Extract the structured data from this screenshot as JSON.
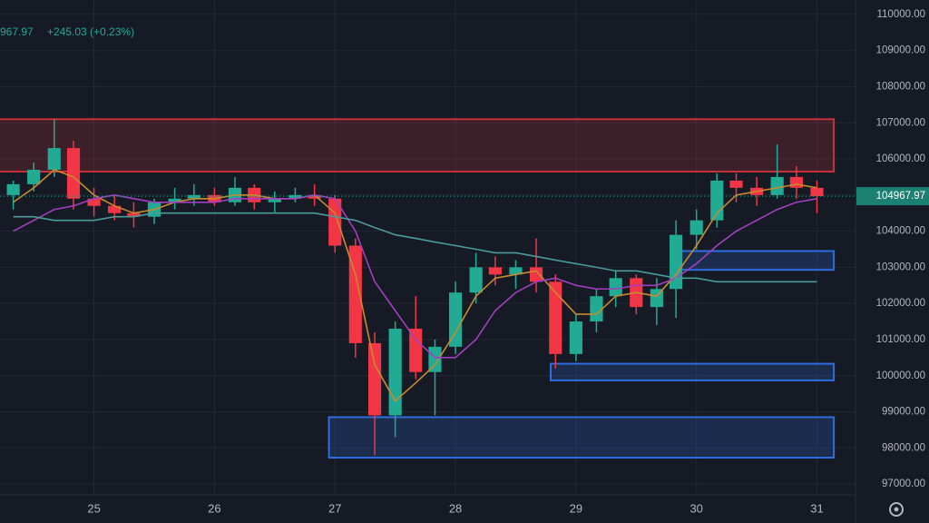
{
  "chart_data": {
    "type": "candlestick",
    "header": [
      "967.97",
      "+245.03 (+0.23%)"
    ],
    "x": [
      24.33,
      24.5,
      24.67,
      24.83,
      25,
      25.17,
      25.33,
      25.5,
      25.67,
      25.83,
      26,
      26.17,
      26.33,
      26.5,
      26.67,
      26.83,
      27,
      27.17,
      27.33,
      27.5,
      27.67,
      27.83,
      28,
      28.17,
      28.33,
      28.5,
      28.67,
      28.83,
      29,
      29.17,
      29.33,
      29.5,
      29.67,
      29.83,
      30,
      30.17,
      30.33,
      30.5,
      30.67,
      30.83,
      31
    ],
    "open": [
      105000,
      105300,
      105700,
      106300,
      104900,
      104700,
      104500,
      104400,
      104800,
      104900,
      105000,
      104800,
      105200,
      104800,
      104900,
      105000,
      104900,
      103600,
      100900,
      98900,
      101300,
      100100,
      100800,
      102300,
      103000,
      102800,
      103000,
      102600,
      100600,
      101500,
      102200,
      102700,
      101900,
      102400,
      103900,
      104300,
      105400,
      105200,
      105000,
      105500,
      105200
    ],
    "high": [
      105400,
      105900,
      107100,
      106500,
      105200,
      105000,
      104800,
      104900,
      105200,
      105300,
      105200,
      105500,
      105300,
      105100,
      105200,
      105300,
      105000,
      103800,
      101200,
      101500,
      102200,
      101000,
      102600,
      103400,
      103300,
      103200,
      103800,
      102800,
      101700,
      102400,
      102900,
      102800,
      102700,
      104300,
      104600,
      105600,
      105600,
      105500,
      106400,
      105800,
      105400
    ],
    "low": [
      104600,
      105100,
      105500,
      104600,
      104400,
      104300,
      104100,
      104200,
      104600,
      104700,
      104700,
      104700,
      104600,
      104500,
      104800,
      104700,
      103400,
      100500,
      97800,
      98300,
      99900,
      98900,
      100600,
      102000,
      102500,
      102400,
      102300,
      100200,
      100400,
      101200,
      101900,
      101700,
      101400,
      101600,
      103500,
      104100,
      104800,
      104700,
      104900,
      104900,
      104500
    ],
    "close": [
      105300,
      105700,
      106300,
      104900,
      104700,
      104500,
      104400,
      104800,
      104900,
      105000,
      104800,
      105200,
      104800,
      104900,
      105000,
      104900,
      103600,
      100900,
      98900,
      101300,
      100100,
      100800,
      102300,
      103000,
      102800,
      103000,
      102600,
      100600,
      101500,
      102200,
      102700,
      101900,
      102400,
      103900,
      104300,
      105400,
      105200,
      105000,
      105500,
      105200,
      104968
    ],
    "up_color": "#22ab94",
    "down_color": "#f23645",
    "series": [
      {
        "color": "#c98a2e",
        "values": [
          104800,
          105200,
          105700,
          105500,
          105000,
          104700,
          104500,
          104600,
          104800,
          104900,
          104900,
          105000,
          105000,
          104900,
          104900,
          105000,
          104500,
          102800,
          100300,
          99300,
          99800,
          100300,
          101200,
          102200,
          102700,
          102800,
          102900,
          102300,
          101700,
          101700,
          102200,
          102300,
          102200,
          102800,
          103600,
          104500,
          105000,
          105100,
          105200,
          105300,
          105200
        ]
      },
      {
        "color": "#a23fc0",
        "values": [
          104000,
          104300,
          104600,
          104700,
          104900,
          105000,
          104900,
          104800,
          104800,
          104800,
          104800,
          104900,
          104900,
          104900,
          104900,
          105000,
          104900,
          104000,
          102600,
          101800,
          101000,
          100500,
          100500,
          101000,
          101800,
          102300,
          102600,
          102700,
          102500,
          102400,
          102400,
          102500,
          102500,
          102700,
          103100,
          103600,
          104000,
          104300,
          104600,
          104800,
          104900
        ]
      },
      {
        "color": "#4a9a98",
        "values": [
          104400,
          104400,
          104300,
          104300,
          104300,
          104400,
          104400,
          104500,
          104500,
          104500,
          104500,
          104500,
          104500,
          104500,
          104500,
          104500,
          104400,
          104300,
          104100,
          103900,
          103800,
          103700,
          103600,
          103500,
          103400,
          103400,
          103300,
          103200,
          103100,
          103000,
          102900,
          102900,
          102800,
          102700,
          102700,
          102600,
          102600,
          102600,
          102600,
          102600,
          102600
        ]
      }
    ],
    "zones": [
      {
        "color": "#c8323c",
        "x": [
          24.1,
          31.14
        ],
        "y": [
          105650,
          107100
        ]
      },
      {
        "color": "#2f6de0",
        "x": [
          29.82,
          31.14
        ],
        "y": [
          102930,
          103450
        ]
      },
      {
        "color": "#2f6de0",
        "x": [
          28.79,
          31.14
        ],
        "y": [
          99870,
          100330
        ]
      },
      {
        "color": "#2f6de0",
        "x": [
          26.95,
          31.14
        ],
        "y": [
          97730,
          98850
        ]
      }
    ],
    "last_price": 104967.97,
    "xlim": [
      24.22,
      31.32
    ],
    "xticks": [
      25,
      26,
      27,
      28,
      29,
      30,
      31
    ],
    "ylim": [
      96700,
      110400
    ],
    "yticks": [
      {
        "value": 97000,
        "label": "97000.00"
      },
      {
        "value": 98000,
        "label": "98000.00"
      },
      {
        "value": 99000,
        "label": "99000.00"
      },
      {
        "value": 100000,
        "label": "100000.00"
      },
      {
        "value": 101000,
        "label": "101000.00"
      },
      {
        "value": 102000,
        "label": "102000.00"
      },
      {
        "value": 103000,
        "label": "103000.00"
      },
      {
        "value": 104000,
        "label": "104000.00"
      },
      {
        "value": 105000,
        "label": "105000.00"
      },
      {
        "value": 106000,
        "label": "106000.00"
      },
      {
        "value": 107000,
        "label": "107000.00"
      },
      {
        "value": 108000,
        "label": "108000.00"
      },
      {
        "value": 109000,
        "label": "109000.00"
      },
      {
        "value": 110000,
        "label": "110000.00"
      }
    ],
    "grid": true
  }
}
